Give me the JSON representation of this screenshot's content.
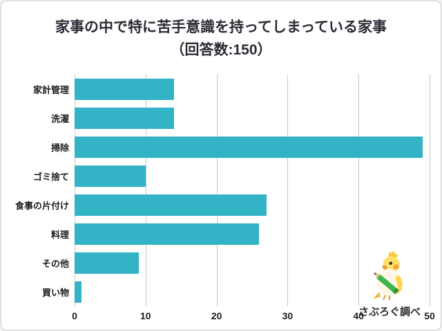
{
  "title": {
    "line1": "家事の中で特に苦手意識を持ってしまっている家事",
    "line2": "（回答数:150）"
  },
  "chart_data": {
    "type": "bar",
    "orientation": "horizontal",
    "title": "家事の中で特に苦手意識を持ってしまっている家事（回答数:150）",
    "categories": [
      "家計管理",
      "洗濯",
      "掃除",
      "ゴミ捨て",
      "食事の片付け",
      "料理",
      "その他",
      "買い物"
    ],
    "values": [
      14,
      14,
      49,
      10,
      27,
      26,
      9,
      1
    ],
    "x_ticks": [
      0,
      10,
      20,
      30,
      40,
      50
    ],
    "xlim": [
      0,
      50
    ],
    "xlabel": "",
    "ylabel": "",
    "grid": true,
    "legend": "none",
    "bar_color": "#32b4c6",
    "grid_color": "#c9c9c9"
  },
  "footer": {
    "credit": "さぶろぐ調べ",
    "mascot_icon": "yellow-bird-with-green-pencil"
  }
}
